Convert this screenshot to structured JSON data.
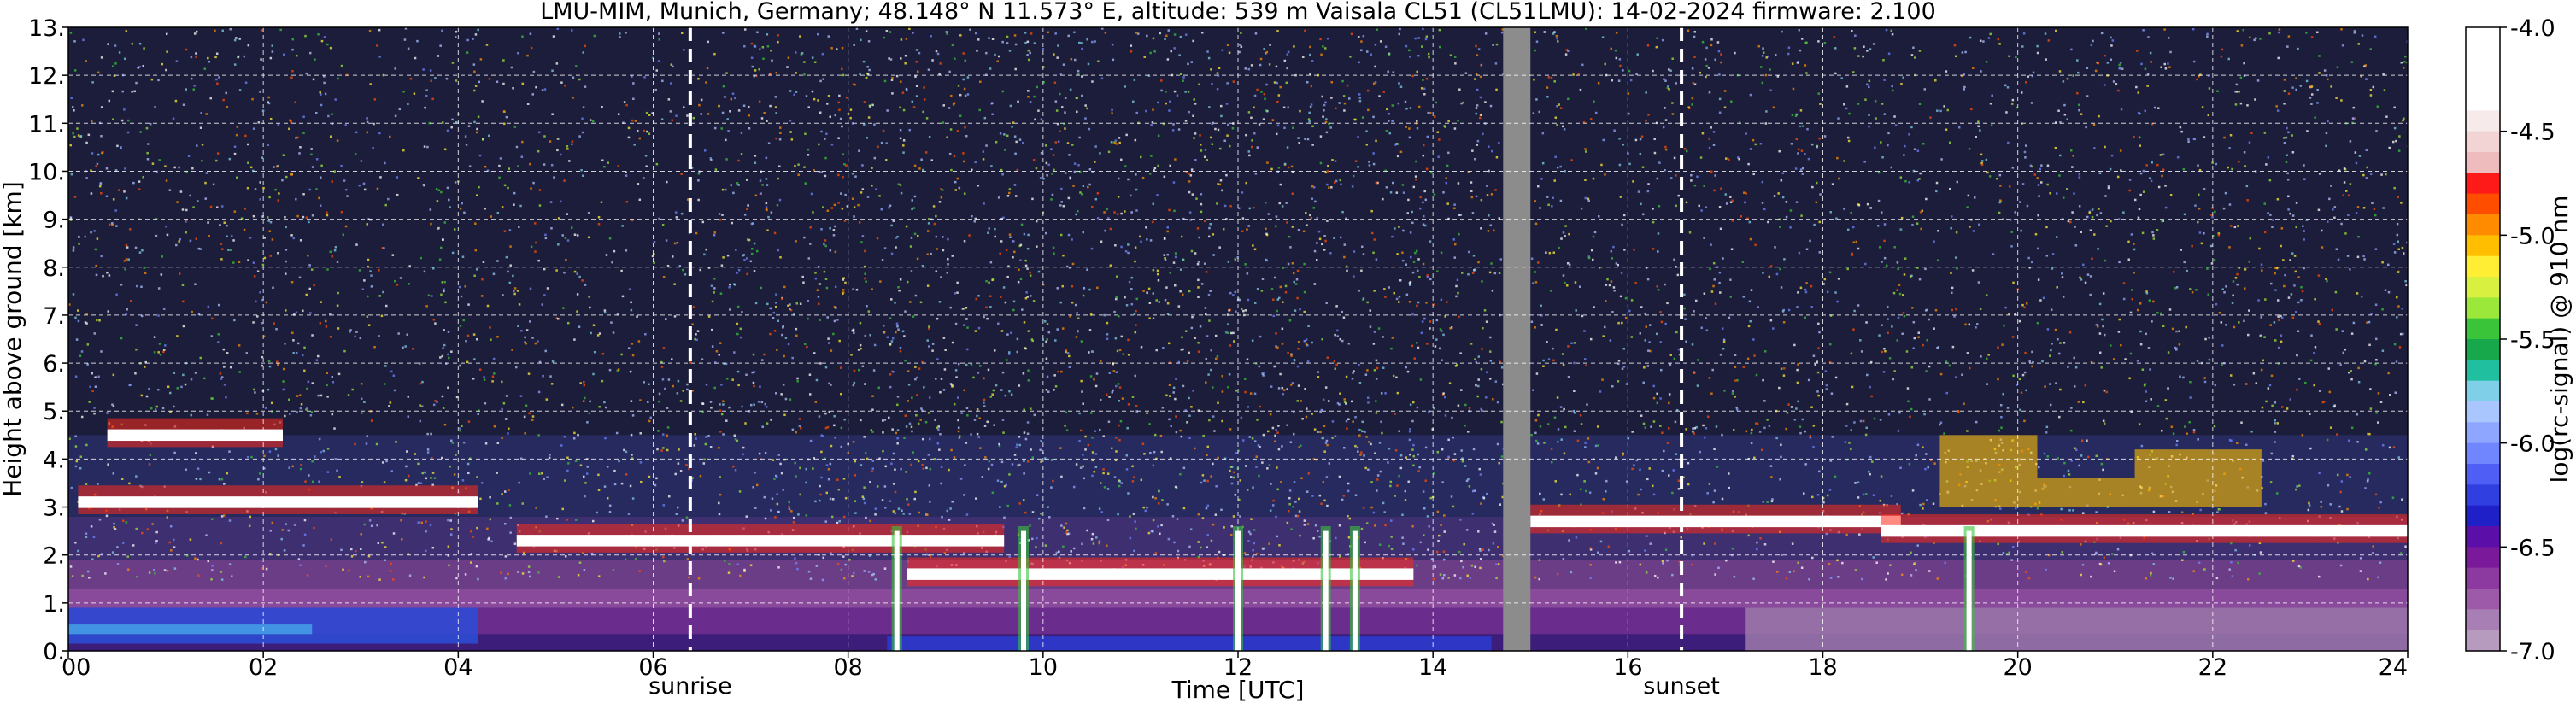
{
  "chart_data": {
    "type": "heatmap",
    "title": "LMU-MIM, Munich, Germany; 48.148° N 11.573° E, altitude: 539 m    Vaisala CL51 (CL51LMU): 14-02-2024    firmware: 2.100",
    "xlabel": "Time [UTC]",
    "ylabel": "Height above ground [km]",
    "xlim": [
      0,
      24
    ],
    "ylim": [
      0,
      13
    ],
    "x_ticks": [
      0,
      2,
      4,
      6,
      8,
      10,
      12,
      14,
      16,
      18,
      20,
      22,
      24
    ],
    "x_tick_labels": [
      "00",
      "02",
      "04",
      "06",
      "08",
      "10",
      "12",
      "14",
      "16",
      "18",
      "20",
      "22",
      "24"
    ],
    "y_ticks": [
      0,
      1,
      2,
      3,
      4,
      5,
      6,
      7,
      8,
      9,
      10,
      11,
      12,
      13
    ],
    "y_tick_labels": [
      "0.",
      "1.",
      "2.",
      "3.",
      "4.",
      "5.",
      "6.",
      "7.",
      "8.",
      "9.",
      "10.",
      "11.",
      "12.",
      "13."
    ],
    "grid": true,
    "markers": [
      {
        "label": "sunrise",
        "x": 6.38
      },
      {
        "label": "sunset",
        "x": 16.55
      }
    ],
    "missing_data": [
      {
        "x_start": 14.72,
        "x_end": 15.0
      }
    ],
    "colorbar": {
      "label": "log(rc-signal) @ 910 nm",
      "min": -7.0,
      "max": -4.0,
      "tick_values": [
        -4.0,
        -4.5,
        -5.0,
        -5.5,
        -6.0,
        -6.5,
        -7.0
      ],
      "tick_labels": [
        "-4.0",
        "-4.5",
        "-5.0",
        "-5.5",
        "-6.0",
        "-6.5",
        "-7.0"
      ],
      "colors_top_to_bottom": [
        "#ffffff",
        "#ffffff",
        "#ffffff",
        "#ffffff",
        "#f6eaea",
        "#f2d4d4",
        "#eebcbc",
        "#ff1a1a",
        "#ff4d00",
        "#ff8c00",
        "#ffbf00",
        "#ffee33",
        "#d8f040",
        "#9be83a",
        "#39c43a",
        "#16a84a",
        "#1fbfa0",
        "#7fcfe8",
        "#a9c6ff",
        "#8ea6ff",
        "#6f86ff",
        "#4f5ff5",
        "#2f3fe0",
        "#2020c8",
        "#5b0fa8",
        "#7a1a9a",
        "#8d3aa0",
        "#9c5aa8",
        "#a87fb4",
        "#b79bbf"
      ]
    },
    "features": {
      "cloud_layers": [
        {
          "x_start": 0.4,
          "x_end": 2.2,
          "height_km": 4.5
        },
        {
          "x_start": 0.1,
          "x_end": 4.2,
          "height_km": 3.1
        },
        {
          "x_start": 4.6,
          "x_end": 9.6,
          "height_km": 2.3
        },
        {
          "x_start": 8.6,
          "x_end": 13.8,
          "height_km": 1.6
        },
        {
          "x_start": 15.0,
          "x_end": 18.8,
          "height_km": 2.7
        },
        {
          "x_start": 18.6,
          "x_end": 24.0,
          "height_km": 2.5
        }
      ],
      "precipitation_columns": [
        8.5,
        9.8,
        12.0,
        12.9,
        13.2,
        19.5
      ]
    }
  }
}
